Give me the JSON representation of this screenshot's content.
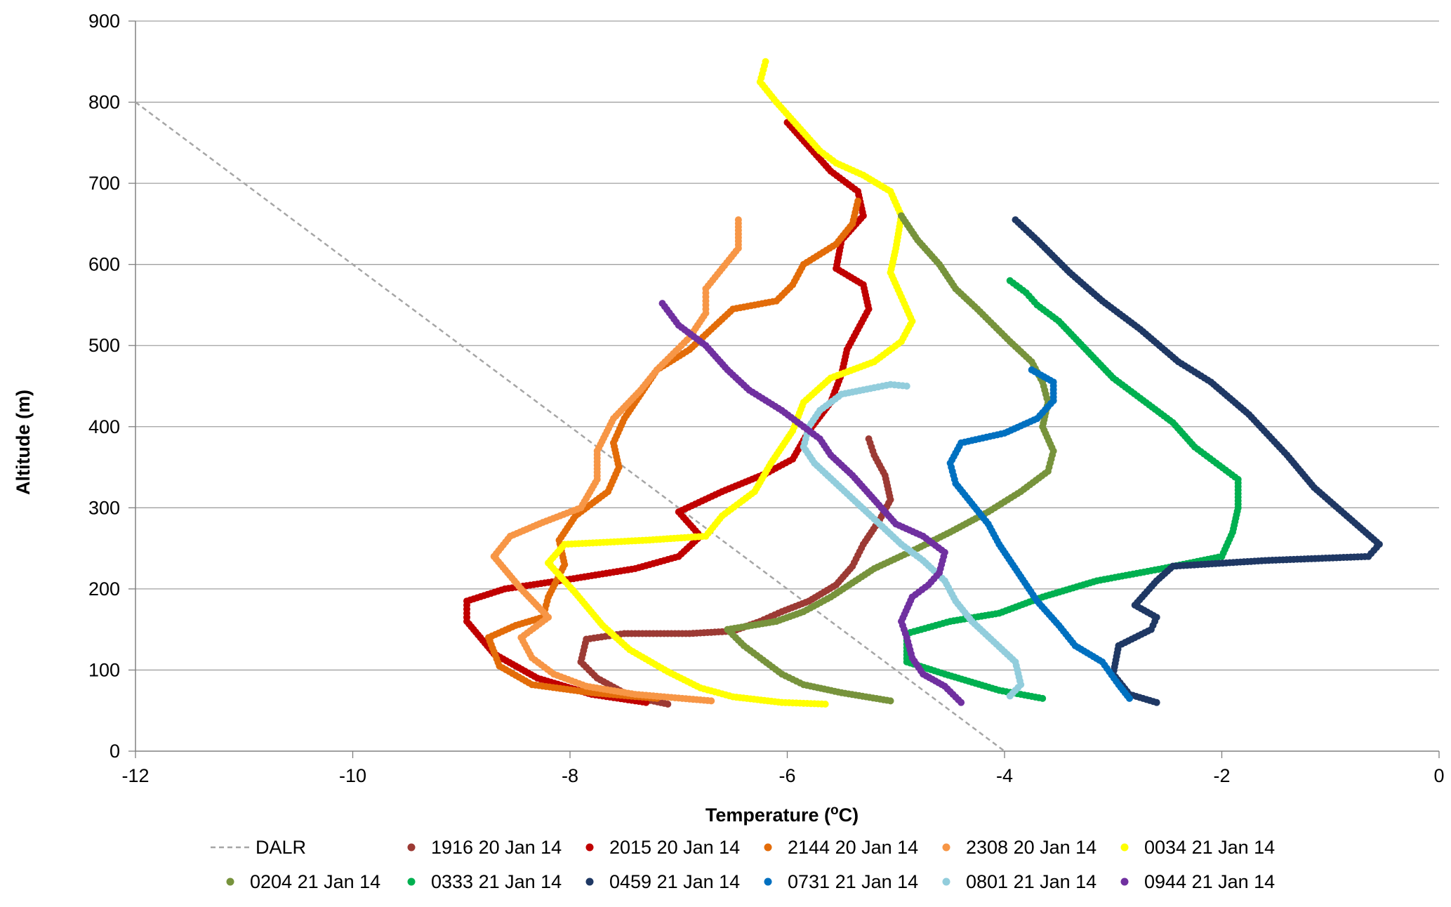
{
  "chart_data": {
    "type": "scatter",
    "title": "",
    "xlabel": "Temperature (",
    "xlabel_sup": "o",
    "xlabel_unit": "C)",
    "ylabel": "Altitude (m)",
    "xlim": [
      -12,
      0
    ],
    "ylim": [
      0,
      900
    ],
    "xticks": [
      "-12",
      "-10",
      "-8",
      "-6",
      "-4",
      "-2",
      "0"
    ],
    "yticks": [
      "0",
      "100",
      "200",
      "300",
      "400",
      "500",
      "600",
      "700",
      "800",
      "900"
    ],
    "grid": "horizontal",
    "legend_position": "bottom",
    "series": [
      {
        "name": "DALR",
        "color": "#a6a6a6",
        "style": "dashed-line",
        "points": [
          [
            -12,
            800
          ],
          [
            -4,
            0
          ]
        ]
      },
      {
        "name": "1916 20 Jan 14",
        "color": "#9c3a34",
        "points": [
          [
            -7.1,
            58
          ],
          [
            -7.45,
            68
          ],
          [
            -7.75,
            90
          ],
          [
            -7.9,
            110
          ],
          [
            -7.85,
            138
          ],
          [
            -7.5,
            145
          ],
          [
            -6.9,
            145
          ],
          [
            -6.5,
            148
          ],
          [
            -6.25,
            160
          ],
          [
            -6.05,
            172
          ],
          [
            -5.8,
            185
          ],
          [
            -5.55,
            205
          ],
          [
            -5.4,
            228
          ],
          [
            -5.3,
            255
          ],
          [
            -5.15,
            285
          ],
          [
            -5.05,
            310
          ],
          [
            -5.1,
            340
          ],
          [
            -5.2,
            365
          ],
          [
            -5.25,
            385
          ]
        ]
      },
      {
        "name": "2015 20 Jan 14",
        "color": "#c00000",
        "points": [
          [
            -7.3,
            60
          ],
          [
            -7.8,
            70
          ],
          [
            -8.3,
            90
          ],
          [
            -8.7,
            120
          ],
          [
            -8.95,
            160
          ],
          [
            -8.95,
            185
          ],
          [
            -8.6,
            200
          ],
          [
            -8.0,
            212
          ],
          [
            -7.4,
            225
          ],
          [
            -7.0,
            240
          ],
          [
            -6.8,
            265
          ],
          [
            -7.0,
            295
          ],
          [
            -6.6,
            320
          ],
          [
            -6.2,
            342
          ],
          [
            -5.95,
            360
          ],
          [
            -5.8,
            395
          ],
          [
            -5.6,
            430
          ],
          [
            -5.5,
            465
          ],
          [
            -5.45,
            495
          ],
          [
            -5.35,
            520
          ],
          [
            -5.25,
            545
          ],
          [
            -5.3,
            575
          ],
          [
            -5.55,
            595
          ],
          [
            -5.5,
            630
          ],
          [
            -5.3,
            660
          ],
          [
            -5.35,
            690
          ],
          [
            -5.6,
            715
          ],
          [
            -5.8,
            745
          ],
          [
            -6.0,
            775
          ]
        ]
      },
      {
        "name": "2144 20 Jan 14",
        "color": "#e36c09",
        "points": [
          [
            -7.2,
            65
          ],
          [
            -7.8,
            72
          ],
          [
            -8.35,
            82
          ],
          [
            -8.65,
            105
          ],
          [
            -8.75,
            140
          ],
          [
            -8.5,
            155
          ],
          [
            -8.25,
            165
          ],
          [
            -8.2,
            190
          ],
          [
            -8.05,
            230
          ],
          [
            -8.1,
            260
          ],
          [
            -7.95,
            290
          ],
          [
            -7.65,
            320
          ],
          [
            -7.55,
            350
          ],
          [
            -7.6,
            380
          ],
          [
            -7.5,
            410
          ],
          [
            -7.35,
            440
          ],
          [
            -7.2,
            470
          ],
          [
            -6.9,
            495
          ],
          [
            -6.7,
            520
          ],
          [
            -6.5,
            545
          ],
          [
            -6.1,
            555
          ],
          [
            -5.95,
            575
          ],
          [
            -5.85,
            600
          ],
          [
            -5.55,
            625
          ],
          [
            -5.4,
            650
          ],
          [
            -5.35,
            678
          ]
        ]
      },
      {
        "name": "2308 20 Jan 14",
        "color": "#f79646",
        "points": [
          [
            -6.7,
            62
          ],
          [
            -7.4,
            70
          ],
          [
            -7.85,
            80
          ],
          [
            -8.15,
            95
          ],
          [
            -8.35,
            115
          ],
          [
            -8.45,
            140
          ],
          [
            -8.2,
            165
          ],
          [
            -8.45,
            200
          ],
          [
            -8.7,
            240
          ],
          [
            -8.55,
            265
          ],
          [
            -8.25,
            282
          ],
          [
            -7.9,
            300
          ],
          [
            -7.75,
            335
          ],
          [
            -7.75,
            370
          ],
          [
            -7.6,
            410
          ],
          [
            -7.35,
            445
          ],
          [
            -7.2,
            470
          ],
          [
            -7.05,
            490
          ],
          [
            -6.9,
            510
          ],
          [
            -6.75,
            540
          ],
          [
            -6.75,
            570
          ],
          [
            -6.6,
            595
          ],
          [
            -6.45,
            620
          ],
          [
            -6.45,
            655
          ]
        ]
      },
      {
        "name": "0034 21 Jan 14",
        "color": "#ffff00",
        "points": [
          [
            -5.65,
            58
          ],
          [
            -6.05,
            60
          ],
          [
            -6.5,
            67
          ],
          [
            -6.8,
            78
          ],
          [
            -7.1,
            98
          ],
          [
            -7.45,
            125
          ],
          [
            -7.7,
            155
          ],
          [
            -7.95,
            195
          ],
          [
            -8.2,
            232
          ],
          [
            -8.05,
            255
          ],
          [
            -7.3,
            260
          ],
          [
            -6.75,
            265
          ],
          [
            -6.6,
            290
          ],
          [
            -6.3,
            320
          ],
          [
            -6.15,
            355
          ],
          [
            -5.95,
            395
          ],
          [
            -5.85,
            430
          ],
          [
            -5.6,
            460
          ],
          [
            -5.2,
            480
          ],
          [
            -4.95,
            505
          ],
          [
            -4.85,
            530
          ],
          [
            -4.95,
            560
          ],
          [
            -5.05,
            590
          ],
          [
            -5.0,
            620
          ],
          [
            -4.95,
            660
          ],
          [
            -5.05,
            690
          ],
          [
            -5.3,
            710
          ],
          [
            -5.55,
            725
          ],
          [
            -5.7,
            740
          ],
          [
            -5.9,
            770
          ],
          [
            -6.1,
            800
          ],
          [
            -6.25,
            825
          ],
          [
            -6.2,
            850
          ]
        ]
      },
      {
        "name": "0204 21 Jan 14",
        "color": "#77933c",
        "points": [
          [
            -5.05,
            62
          ],
          [
            -5.5,
            72
          ],
          [
            -5.85,
            82
          ],
          [
            -6.05,
            95
          ],
          [
            -6.25,
            115
          ],
          [
            -6.4,
            130
          ],
          [
            -6.55,
            150
          ],
          [
            -6.1,
            160
          ],
          [
            -5.85,
            172
          ],
          [
            -5.6,
            190
          ],
          [
            -5.2,
            225
          ],
          [
            -4.8,
            250
          ],
          [
            -4.5,
            270
          ],
          [
            -4.15,
            295
          ],
          [
            -3.85,
            320
          ],
          [
            -3.6,
            345
          ],
          [
            -3.55,
            370
          ],
          [
            -3.65,
            400
          ],
          [
            -3.6,
            430
          ],
          [
            -3.65,
            455
          ],
          [
            -3.75,
            480
          ],
          [
            -3.95,
            505
          ],
          [
            -4.1,
            525
          ],
          [
            -4.25,
            545
          ],
          [
            -4.45,
            570
          ],
          [
            -4.6,
            600
          ],
          [
            -4.8,
            630
          ],
          [
            -4.95,
            660
          ]
        ]
      },
      {
        "name": "0333 21 Jan 14",
        "color": "#00b050",
        "points": [
          [
            -3.65,
            65
          ],
          [
            -4.05,
            75
          ],
          [
            -4.55,
            95
          ],
          [
            -4.9,
            110
          ],
          [
            -4.9,
            145
          ],
          [
            -4.5,
            160
          ],
          [
            -4.05,
            170
          ],
          [
            -3.65,
            190
          ],
          [
            -3.15,
            210
          ],
          [
            -2.55,
            225
          ],
          [
            -2.0,
            240
          ],
          [
            -1.9,
            270
          ],
          [
            -1.85,
            300
          ],
          [
            -1.85,
            335
          ],
          [
            -2.05,
            355
          ],
          [
            -2.25,
            375
          ],
          [
            -2.45,
            405
          ],
          [
            -2.75,
            435
          ],
          [
            -3.0,
            460
          ],
          [
            -3.25,
            495
          ],
          [
            -3.5,
            530
          ],
          [
            -3.7,
            550
          ],
          [
            -3.8,
            565
          ],
          [
            -3.95,
            580
          ]
        ]
      },
      {
        "name": "0459 21 Jan 14",
        "color": "#1f3864",
        "points": [
          [
            -2.6,
            60
          ],
          [
            -2.85,
            70
          ],
          [
            -3.0,
            95
          ],
          [
            -2.95,
            130
          ],
          [
            -2.65,
            150
          ],
          [
            -2.6,
            165
          ],
          [
            -2.8,
            180
          ],
          [
            -2.6,
            210
          ],
          [
            -2.45,
            228
          ],
          [
            -1.6,
            235
          ],
          [
            -0.65,
            240
          ],
          [
            -0.55,
            255
          ],
          [
            -0.85,
            290
          ],
          [
            -1.15,
            325
          ],
          [
            -1.4,
            365
          ],
          [
            -1.75,
            415
          ],
          [
            -2.1,
            455
          ],
          [
            -2.4,
            480
          ],
          [
            -2.75,
            520
          ],
          [
            -3.1,
            555
          ],
          [
            -3.4,
            590
          ],
          [
            -3.7,
            630
          ],
          [
            -3.9,
            655
          ]
        ]
      },
      {
        "name": "0731 21 Jan 14",
        "color": "#0070c0",
        "points": [
          [
            -2.85,
            65
          ],
          [
            -2.95,
            82
          ],
          [
            -3.1,
            110
          ],
          [
            -3.35,
            130
          ],
          [
            -3.5,
            155
          ],
          [
            -3.7,
            185
          ],
          [
            -3.85,
            215
          ],
          [
            -4.05,
            255
          ],
          [
            -4.15,
            280
          ],
          [
            -4.3,
            305
          ],
          [
            -4.45,
            330
          ],
          [
            -4.5,
            355
          ],
          [
            -4.4,
            380
          ],
          [
            -4.0,
            392
          ],
          [
            -3.7,
            410
          ],
          [
            -3.55,
            432
          ],
          [
            -3.55,
            455
          ],
          [
            -3.75,
            470
          ]
        ]
      },
      {
        "name": "0801 21 Jan 14",
        "color": "#92cddc",
        "points": [
          [
            -3.95,
            68
          ],
          [
            -3.85,
            82
          ],
          [
            -3.9,
            110
          ],
          [
            -4.1,
            135
          ],
          [
            -4.3,
            160
          ],
          [
            -4.45,
            185
          ],
          [
            -4.55,
            210
          ],
          [
            -4.75,
            235
          ],
          [
            -4.95,
            255
          ],
          [
            -5.15,
            280
          ],
          [
            -5.35,
            305
          ],
          [
            -5.55,
            330
          ],
          [
            -5.75,
            355
          ],
          [
            -5.85,
            375
          ],
          [
            -5.8,
            400
          ],
          [
            -5.7,
            420
          ],
          [
            -5.5,
            440
          ],
          [
            -5.2,
            448
          ],
          [
            -5.05,
            452
          ],
          [
            -4.9,
            450
          ]
        ]
      },
      {
        "name": "0944 21 Jan 14",
        "color": "#7030a0",
        "points": [
          [
            -4.4,
            60
          ],
          [
            -4.55,
            80
          ],
          [
            -4.75,
            95
          ],
          [
            -4.85,
            115
          ],
          [
            -4.9,
            140
          ],
          [
            -4.95,
            160
          ],
          [
            -4.85,
            190
          ],
          [
            -4.7,
            205
          ],
          [
            -4.6,
            220
          ],
          [
            -4.55,
            245
          ],
          [
            -4.75,
            265
          ],
          [
            -5.0,
            280
          ],
          [
            -5.2,
            310
          ],
          [
            -5.4,
            340
          ],
          [
            -5.6,
            365
          ],
          [
            -5.7,
            385
          ],
          [
            -5.85,
            400
          ],
          [
            -6.05,
            420
          ],
          [
            -6.35,
            445
          ],
          [
            -6.55,
            470
          ],
          [
            -6.75,
            500
          ],
          [
            -7.0,
            525
          ],
          [
            -7.15,
            552
          ]
        ]
      }
    ]
  }
}
